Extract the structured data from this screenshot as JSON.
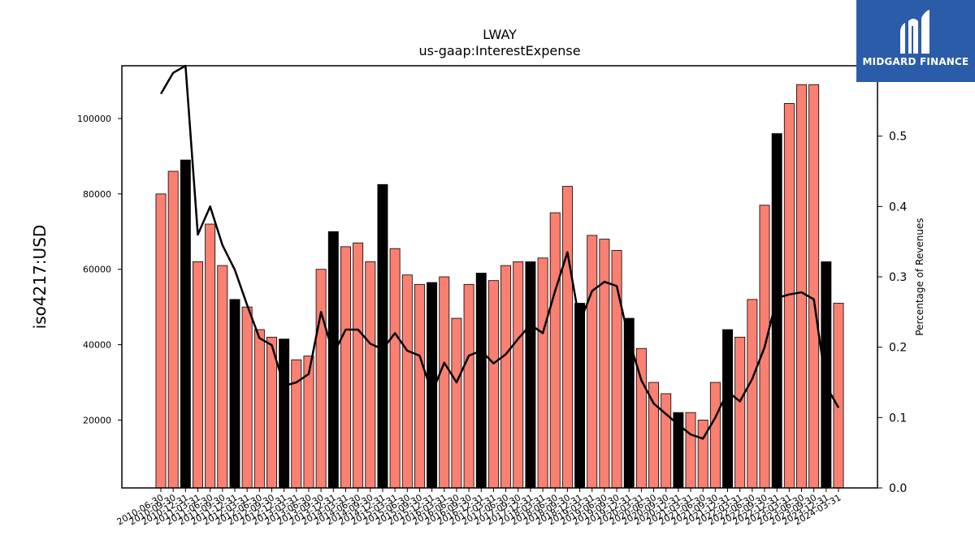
{
  "chart_data": {
    "type": "bar",
    "title": "LWAY",
    "subtitle": "us-gaap:InterestExpense",
    "ylabel": "iso4217:USD",
    "y2label": "Percentage of Revenues",
    "ylim": [
      2000,
      114000
    ],
    "y2lim": [
      0.0,
      0.6
    ],
    "yticks": [
      20000,
      40000,
      60000,
      80000,
      100000
    ],
    "y2ticks": [
      0.0,
      0.1,
      0.2,
      0.3,
      0.4,
      0.5,
      0.6
    ],
    "colors": {
      "bar": "#fa8072",
      "bar_annual": "#000000",
      "line": "#000000"
    },
    "categories": [
      "2010-06-30",
      "2010-09-30",
      "2010-12-31",
      "2011-03-31",
      "2011-06-30",
      "2011-09-30",
      "2011-12-31",
      "2012-03-31",
      "2012-06-30",
      "2012-09-30",
      "2012-12-31",
      "2013-03-31",
      "2013-06-30",
      "2013-09-30",
      "2013-12-31",
      "2014-03-31",
      "2014-06-30",
      "2014-09-30",
      "2014-12-31",
      "2015-03-31",
      "2015-06-30",
      "2015-09-30",
      "2015-12-31",
      "2016-03-31",
      "2016-06-30",
      "2016-09-30",
      "2016-12-31",
      "2017-03-31",
      "2017-06-30",
      "2017-09-30",
      "2017-12-31",
      "2018-03-31",
      "2018-06-30",
      "2018-09-30",
      "2018-12-31",
      "2019-03-31",
      "2019-06-30",
      "2019-09-30",
      "2019-12-31",
      "2020-03-31",
      "2020-06-30",
      "2020-09-30",
      "2020-12-31",
      "2021-03-31",
      "2021-06-30",
      "2021-09-30",
      "2021-12-31",
      "2022-03-31",
      "2022-06-30",
      "2022-09-30",
      "2022-12-31",
      "2023-03-31",
      "2023-06-30",
      "2023-09-30",
      "2023-12-31",
      "2024-03-31"
    ],
    "series": [
      {
        "kind": "bar",
        "values": [
          80000,
          86000,
          89000,
          62000,
          72000,
          61000,
          52000,
          50000,
          44000,
          42000,
          41500,
          36000,
          37000,
          60000,
          70000,
          66000,
          67000,
          62000,
          82500,
          65500,
          58500,
          56000,
          56500,
          58000,
          47000,
          56000,
          59000,
          57000,
          61000,
          62000,
          62000,
          63000,
          75000,
          82000,
          51000,
          69000,
          68000,
          65000,
          47000,
          39000,
          30000,
          27000,
          22000,
          22000,
          20000,
          30000,
          44000,
          42000,
          52000,
          77000,
          96000,
          104000,
          109000,
          109000,
          62000,
          51000
        ],
        "annual_flags": [
          false,
          false,
          true,
          false,
          false,
          false,
          true,
          false,
          false,
          false,
          true,
          false,
          false,
          false,
          true,
          false,
          false,
          false,
          true,
          false,
          false,
          false,
          true,
          false,
          false,
          false,
          true,
          false,
          false,
          false,
          true,
          false,
          false,
          false,
          true,
          false,
          false,
          false,
          true,
          false,
          false,
          false,
          true,
          false,
          false,
          false,
          true,
          false,
          false,
          false,
          true,
          false,
          false,
          false,
          true,
          false
        ]
      },
      {
        "kind": "line",
        "axis": "right",
        "values": [
          0.56,
          0.59,
          0.6,
          0.36,
          0.4,
          0.345,
          0.31,
          0.26,
          0.213,
          0.203,
          0.145,
          0.15,
          0.162,
          0.25,
          0.19,
          0.225,
          0.225,
          0.205,
          0.197,
          0.22,
          0.195,
          0.188,
          0.135,
          0.178,
          0.15,
          0.188,
          0.195,
          0.177,
          0.19,
          0.212,
          0.232,
          0.22,
          0.28,
          0.335,
          0.235,
          0.28,
          0.293,
          0.287,
          0.21,
          0.153,
          0.12,
          0.105,
          0.09,
          0.076,
          0.07,
          0.1,
          0.137,
          0.123,
          0.155,
          0.2,
          0.27,
          0.275,
          0.278,
          0.268,
          0.145,
          0.114
        ]
      }
    ]
  },
  "logo": {
    "text": "MIDGARD FINANCE"
  }
}
